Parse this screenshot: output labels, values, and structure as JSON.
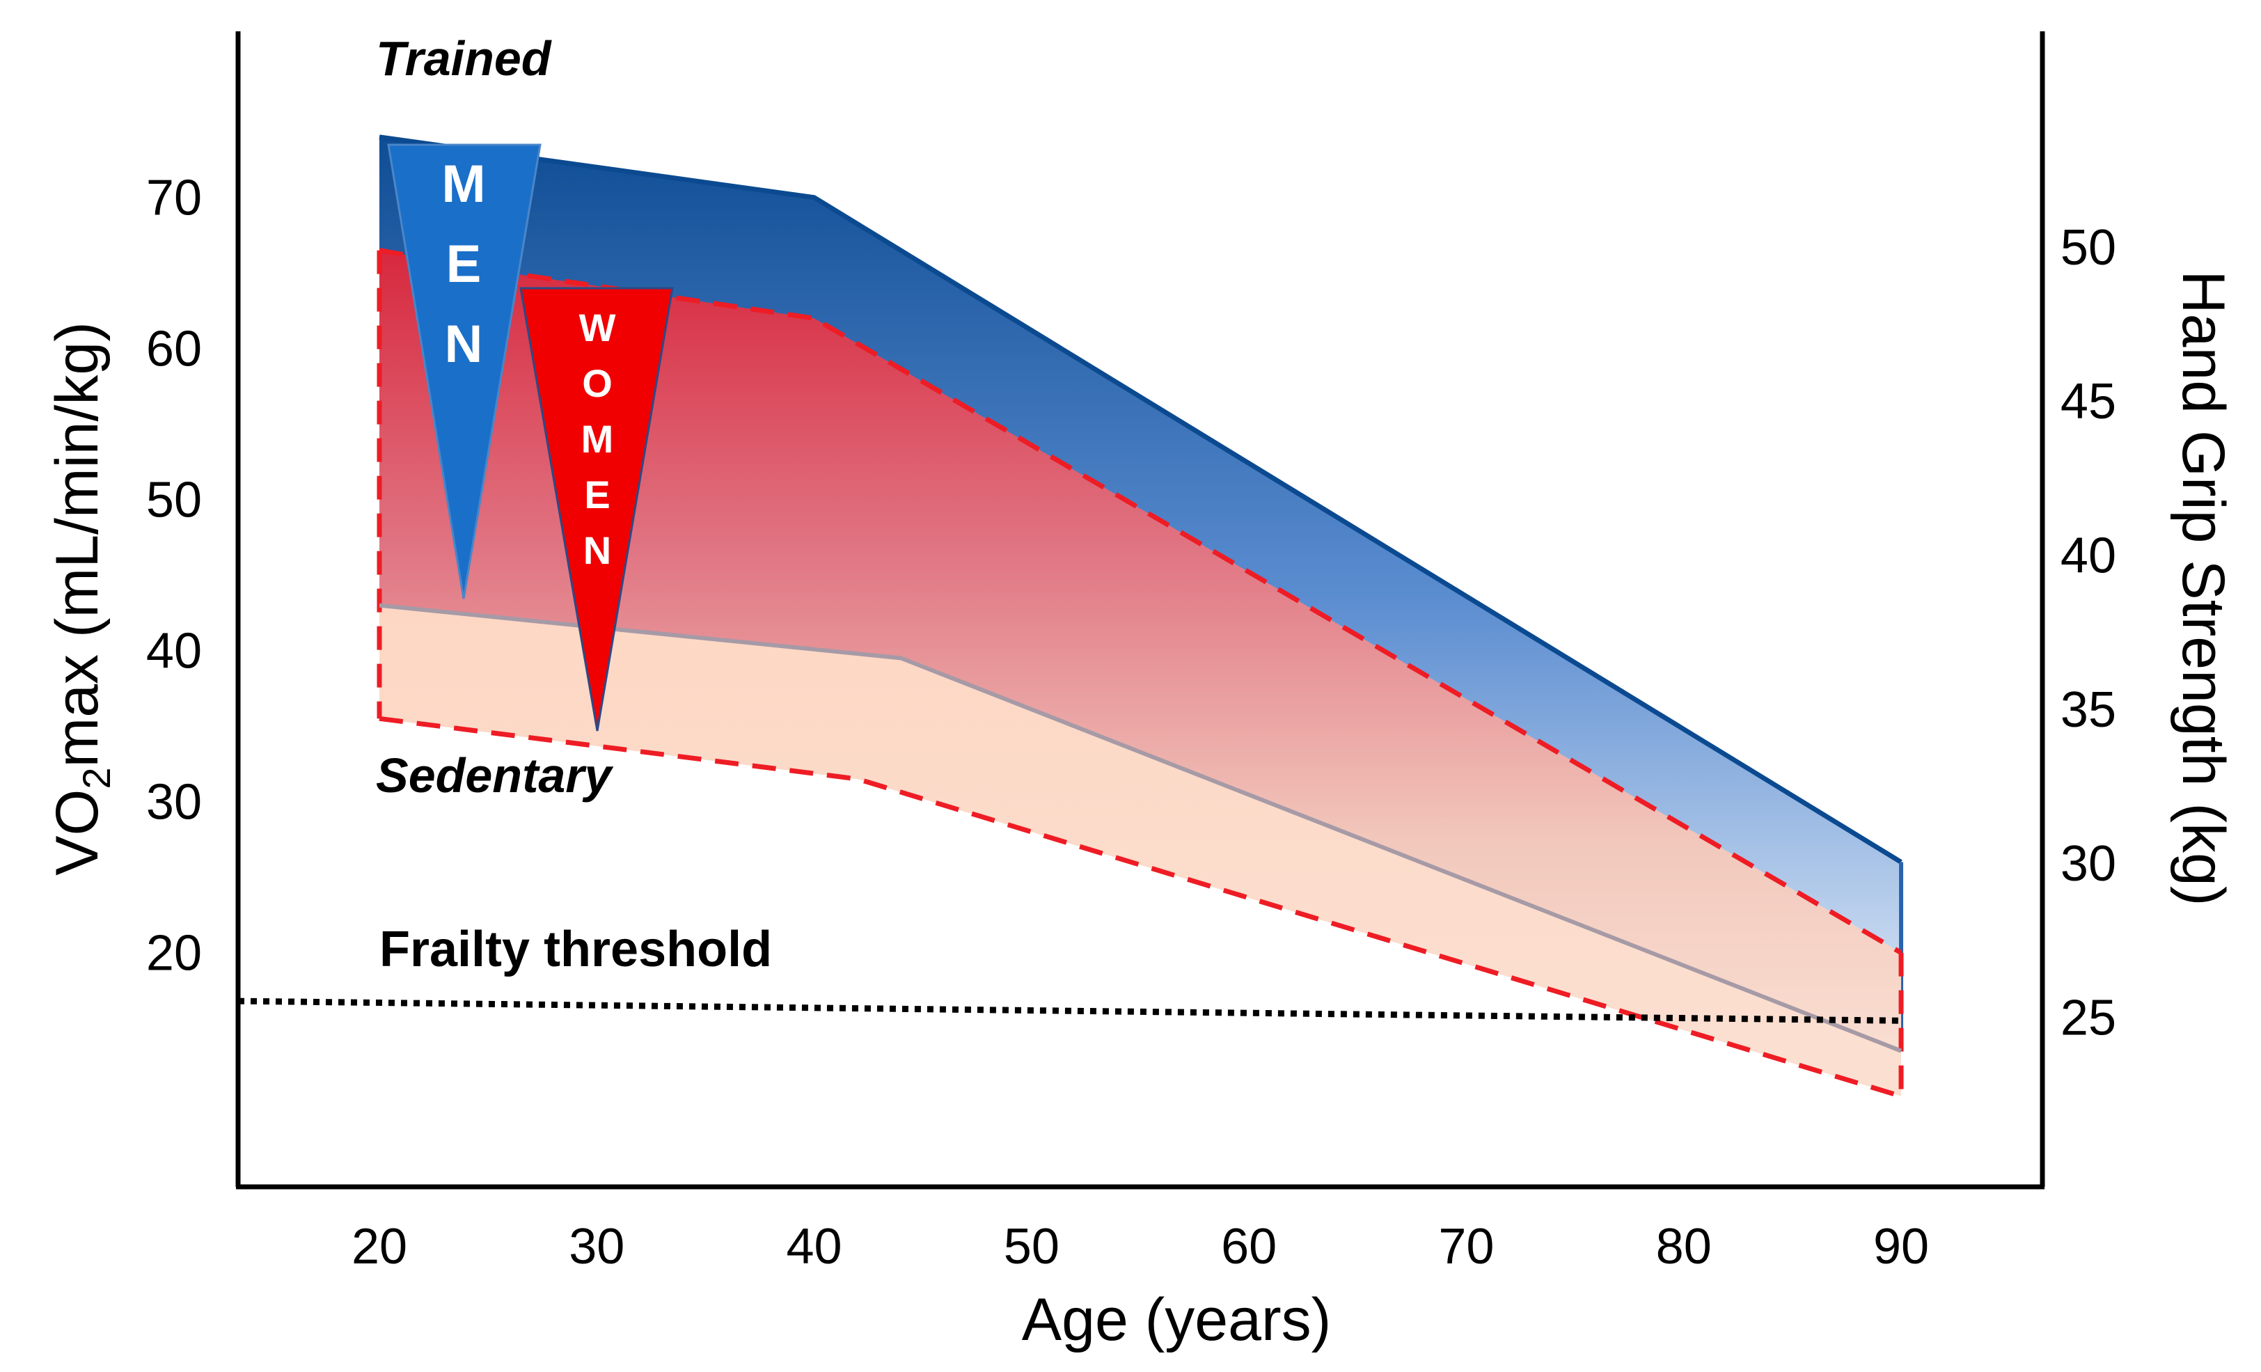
{
  "chart_data": {
    "type": "area",
    "xlabel": "Age (years)",
    "ylabel_left": {
      "main": "VO",
      "subscript": "2",
      "rest": "max (mL/min/kg)"
    },
    "ylabel_right": "Hand Grip Strength (kg)",
    "x_ticks": [
      "20",
      "30",
      "40",
      "50",
      "60",
      "70",
      "80",
      "90"
    ],
    "y_left_ticks": [
      "20",
      "30",
      "40",
      "50",
      "60",
      "70"
    ],
    "y_right_ticks": [
      "25",
      "30",
      "35",
      "40",
      "45",
      "50"
    ],
    "xlim": [
      13.5,
      96.5
    ],
    "ylim_left": [
      4.5,
      81
    ],
    "ylim_right": [
      19.5,
      57
    ],
    "series": [
      {
        "name": "Men",
        "color": "#1f5fa8",
        "trained": [
          [
            20,
            74
          ],
          [
            40,
            70
          ],
          [
            90,
            26
          ]
        ],
        "sedentary": [
          [
            20,
            43
          ],
          [
            44,
            39.5
          ],
          [
            90,
            13.5
          ]
        ]
      },
      {
        "name": "Women",
        "color": "#ff0000",
        "trained": [
          [
            20,
            66.5
          ],
          [
            26,
            65
          ],
          [
            40,
            62
          ],
          [
            90,
            20
          ]
        ],
        "sedentary": [
          [
            20,
            35.5
          ],
          [
            42,
            31.5
          ],
          [
            90,
            10.5
          ]
        ]
      }
    ],
    "frailty_threshold": {
      "label": "Frailty threshold",
      "y": [
        [
          13.5,
          16.8
        ],
        [
          90,
          15.5
        ]
      ]
    },
    "annotations": {
      "trained": "Trained",
      "sedentary": "Sedentary",
      "men": [
        "M",
        "E",
        "N"
      ],
      "women": [
        "W",
        "O",
        "M",
        "E",
        "N"
      ]
    }
  }
}
